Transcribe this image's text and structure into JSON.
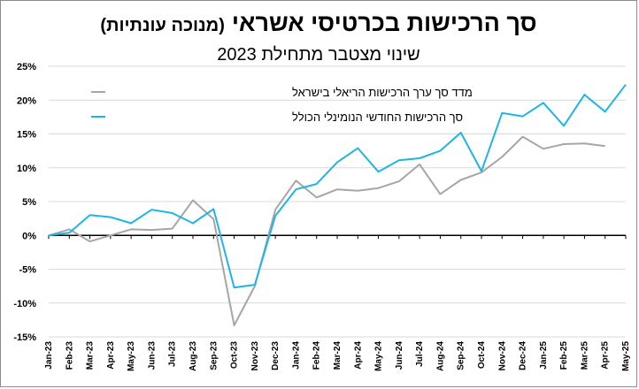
{
  "chart_data": {
    "type": "line",
    "title": "סך הרכישות בכרטיסי אשראי",
    "title_note": "(מנוכה עונתיות)",
    "subtitle": "שינוי מצטבר מתחילת 2023",
    "categories": [
      "Jan-23",
      "Feb-23",
      "Mar-23",
      "Apr-23",
      "May-23",
      "Jun-23",
      "Jul-23",
      "Aug-23",
      "Sep-23",
      "Oct-23",
      "Nov-23",
      "Dec-23",
      "Jan-24",
      "Feb-24",
      "Mar-24",
      "Apr-24",
      "May-24",
      "Jun-24",
      "Jul-24",
      "Aug-24",
      "Sep-24",
      "Oct-24",
      "Nov-24",
      "Dec-24",
      "Jan-25",
      "Feb-25",
      "Mar-25",
      "Apr-25",
      "May-25"
    ],
    "series": [
      {
        "name": "מדד סך ערך הרכישות הריאלי בישראל",
        "color": "#a6a6a6",
        "values": [
          0.0,
          0.9,
          -0.9,
          0.0,
          0.9,
          0.8,
          1.0,
          5.2,
          2.4,
          -13.3,
          -7.5,
          3.8,
          8.1,
          5.6,
          6.8,
          6.6,
          7.0,
          8.0,
          10.5,
          6.1,
          8.2,
          9.3,
          11.6,
          14.6,
          12.8,
          13.5,
          13.6,
          13.2,
          null
        ]
      },
      {
        "name": "סך הרכישות החודשי הנומינלי הכולל",
        "color": "#1fb4e6",
        "values": [
          0.0,
          0.4,
          3.0,
          2.7,
          1.8,
          3.8,
          3.3,
          1.8,
          3.9,
          -7.7,
          -7.3,
          2.9,
          6.8,
          7.6,
          10.8,
          12.9,
          9.4,
          11.1,
          11.4,
          12.5,
          15.2,
          9.5,
          18.1,
          17.6,
          19.6,
          16.2,
          20.8,
          18.3,
          22.3
        ]
      }
    ],
    "y_ticks": [
      "25%",
      "20%",
      "15%",
      "10%",
      "5%",
      "0%",
      "-5%",
      "-10%",
      "-15%"
    ],
    "ylim": [
      -15,
      25
    ],
    "y_unit": "%",
    "grid": true,
    "legend_position": "top-center"
  }
}
